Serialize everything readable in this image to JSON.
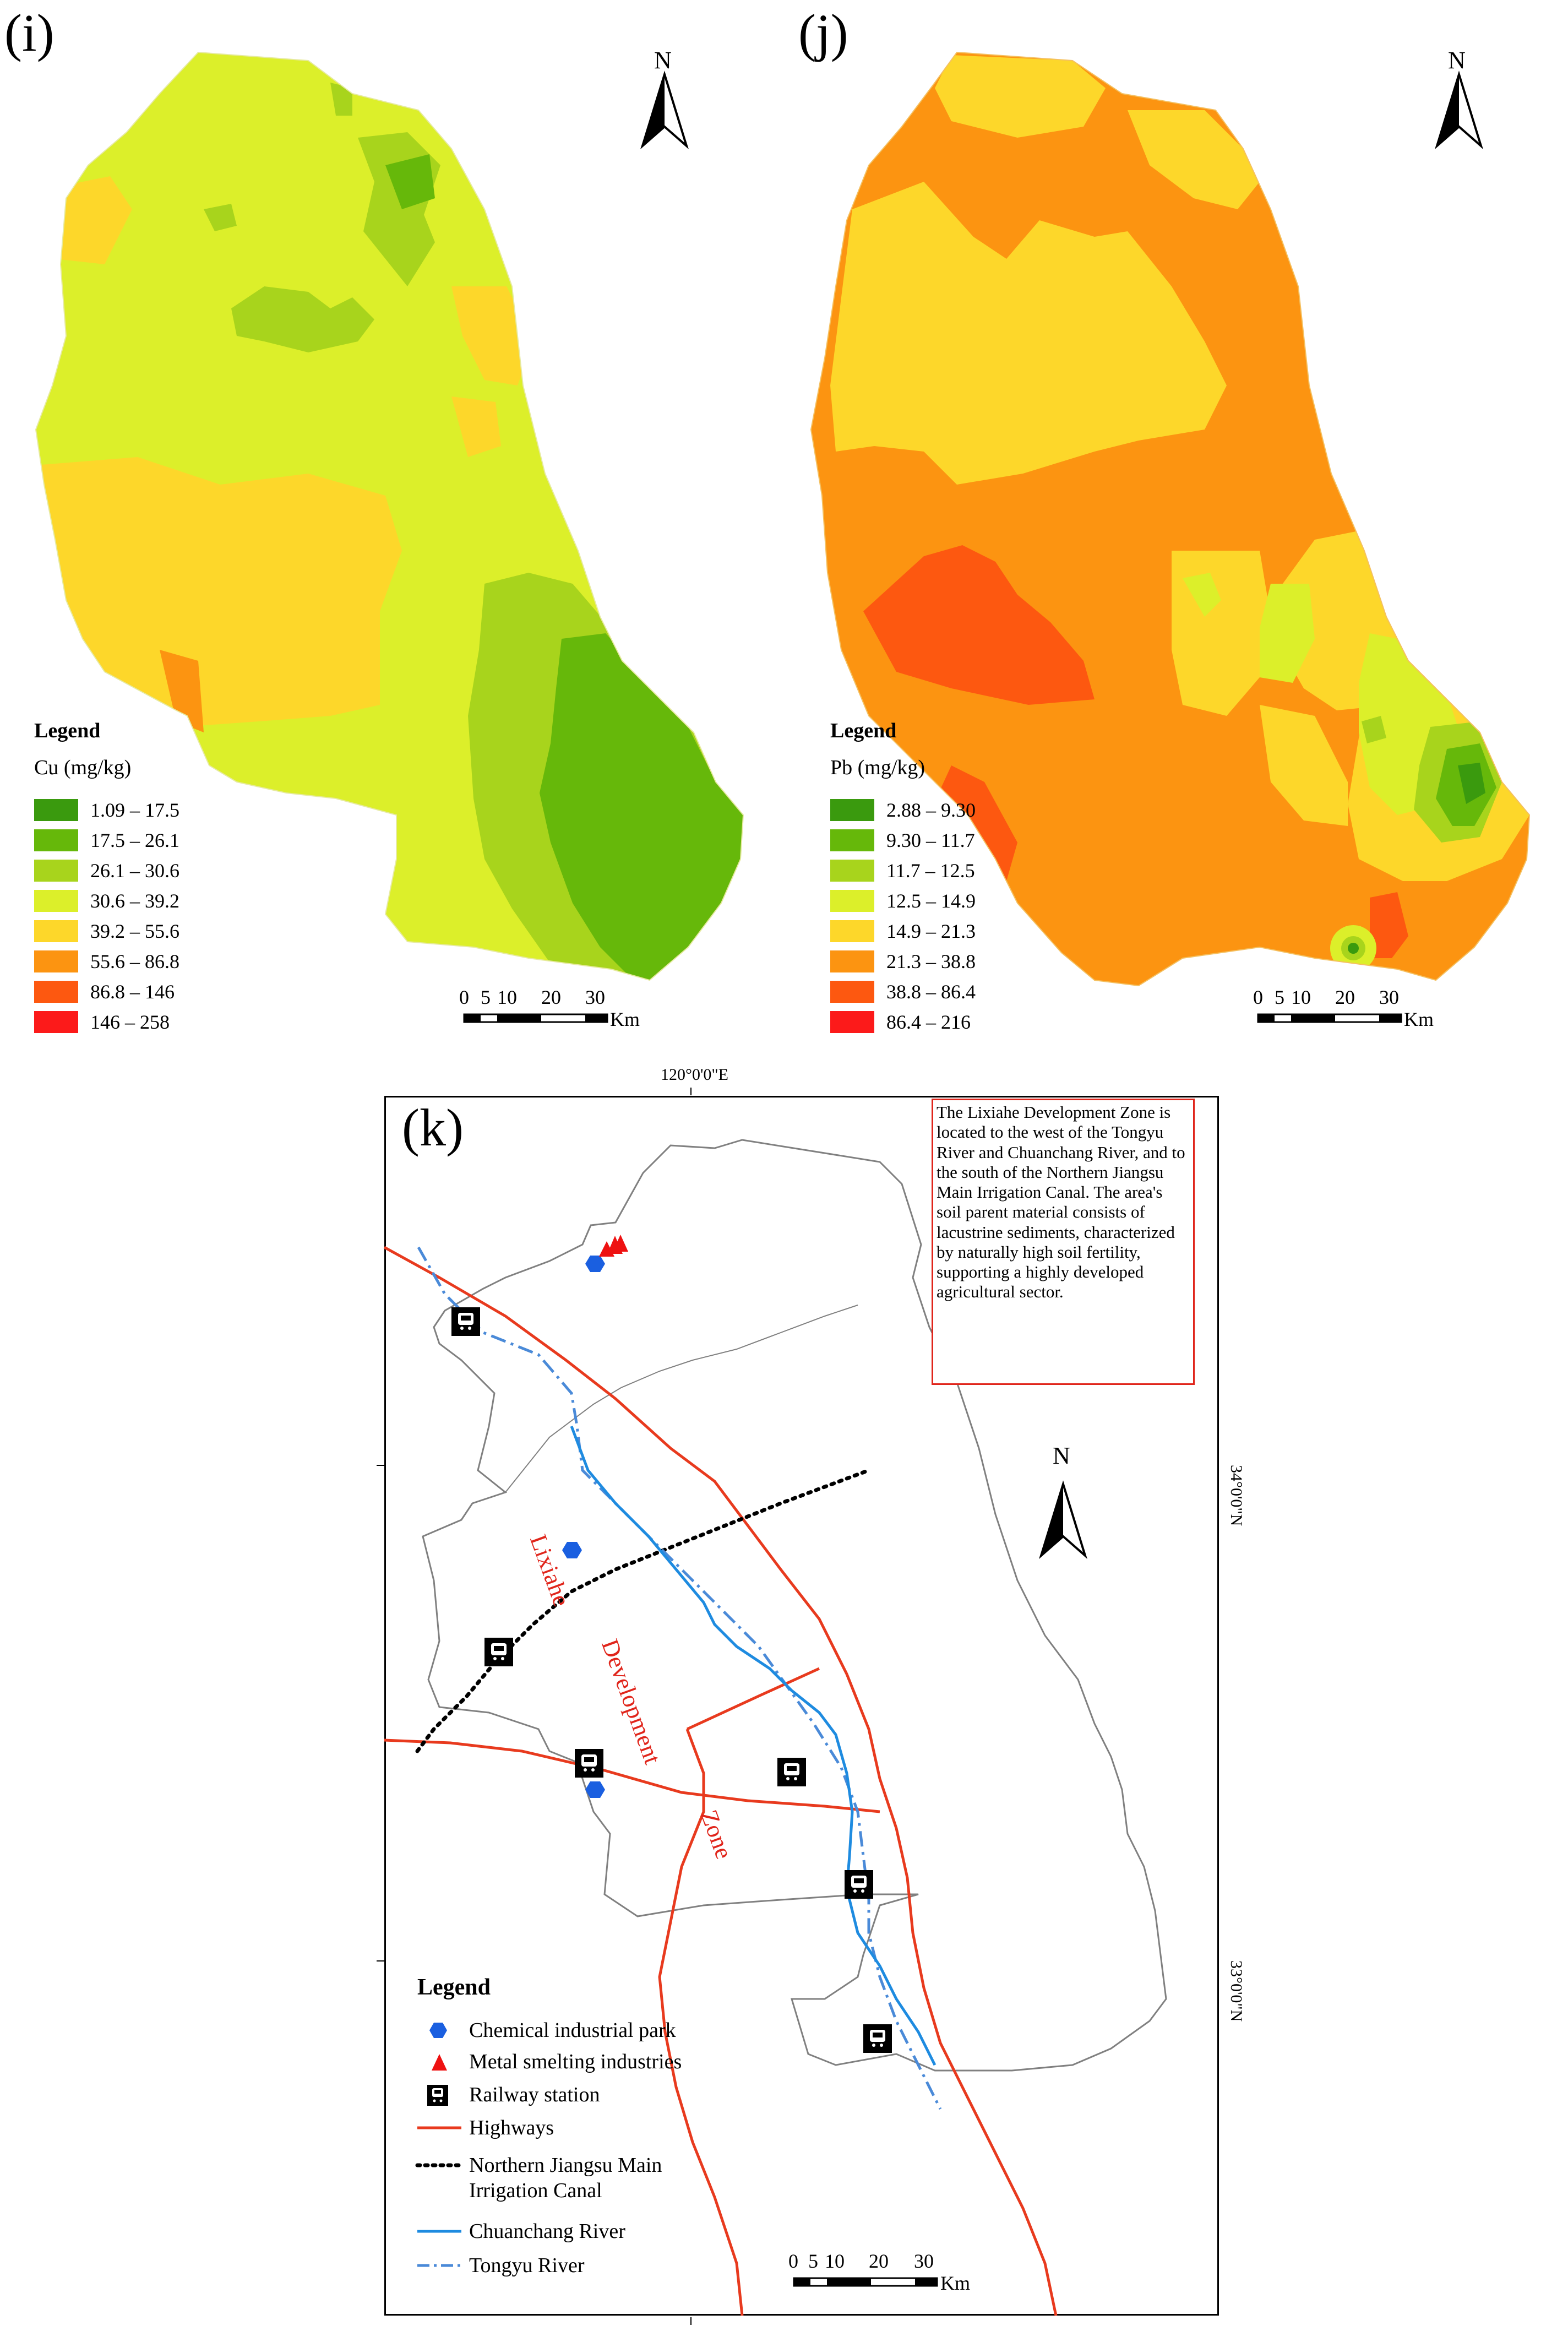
{
  "panel_i": {
    "label": "(i)",
    "north": "N",
    "legend_title": "Legend",
    "unit": "Cu (mg/kg)",
    "classes": [
      {
        "label": "1.09 – 17.5",
        "color": "#3a9a0e"
      },
      {
        "label": "17.5 – 26.1",
        "color": "#66b80a"
      },
      {
        "label": "26.1 – 30.6",
        "color": "#a8d41c"
      },
      {
        "label": "30.6 – 39.2",
        "color": "#dcef2a"
      },
      {
        "label": "39.2 – 55.6",
        "color": "#fdd72a"
      },
      {
        "label": "55.6 – 86.8",
        "color": "#fc9411"
      },
      {
        "label": "86.8 – 146",
        "color": "#fd5810"
      },
      {
        "label": "146 – 258",
        "color": "#fc1a1a"
      }
    ],
    "scale": {
      "ticks": [
        "0",
        "5",
        "10",
        "20",
        "30"
      ],
      "unit": "Km"
    }
  },
  "panel_j": {
    "label": "(j)",
    "north": "N",
    "legend_title": "Legend",
    "unit": "Pb (mg/kg)",
    "classes": [
      {
        "label": "2.88 – 9.30",
        "color": "#3a9a0e"
      },
      {
        "label": "9.30 – 11.7",
        "color": "#66b80a"
      },
      {
        "label": "11.7 – 12.5",
        "color": "#a8d41c"
      },
      {
        "label": "12.5 – 14.9",
        "color": "#dcef2a"
      },
      {
        "label": "14.9 – 21.3",
        "color": "#fdd72a"
      },
      {
        "label": "21.3 – 38.8",
        "color": "#fc9411"
      },
      {
        "label": "38.8 – 86.4",
        "color": "#fd5810"
      },
      {
        "label": "86.4 – 216",
        "color": "#fc1a1a"
      }
    ],
    "scale": {
      "ticks": [
        "0",
        "5",
        "10",
        "20",
        "30"
      ],
      "unit": "Km"
    }
  },
  "panel_k": {
    "label": "(k)",
    "north": "N",
    "lon_label": "120°0'0\"E",
    "lat_labels": [
      "34°0'0\"N",
      "33°0'0\"N"
    ],
    "info_box": "The Lixiahe Development Zone is located to the west of the Tongyu River and Chuanchang River, and to the south of the Northern Jiangsu Main Irrigation Canal. The area's soil parent material consists of lacustrine sediments, characterized by naturally high soil fertility, supporting a highly developed agricultural sector.",
    "zone_words": [
      "Lixiahe",
      "Development",
      "Zone"
    ],
    "legend_title": "Legend",
    "legend": [
      {
        "label": "Chemical industrial park",
        "icon": "blue-hexagon",
        "color": "#1a5fe0"
      },
      {
        "label": "Metal smelting industries",
        "icon": "red-triangle",
        "color": "#ee1111"
      },
      {
        "label": "Railway station",
        "icon": "train-icon",
        "color": "#000000"
      },
      {
        "label": "Highways",
        "icon": "red-line",
        "color": "#e83a1e"
      },
      {
        "label": "Northern Jiangsu Main Irrigation Canal",
        "icon": "dotted-line",
        "color": "#000000"
      },
      {
        "label": "Chuanchang River",
        "icon": "blue-line",
        "color": "#1e8be0"
      },
      {
        "label": "Tongyu River",
        "icon": "dashdot-line",
        "color": "#4a8ad8"
      }
    ],
    "scale": {
      "ticks": [
        "0",
        "5",
        "10",
        "20",
        "30"
      ],
      "unit": "Km"
    },
    "colors": {
      "zone_text": "#e0251b",
      "info_border": "#e0251b"
    }
  }
}
